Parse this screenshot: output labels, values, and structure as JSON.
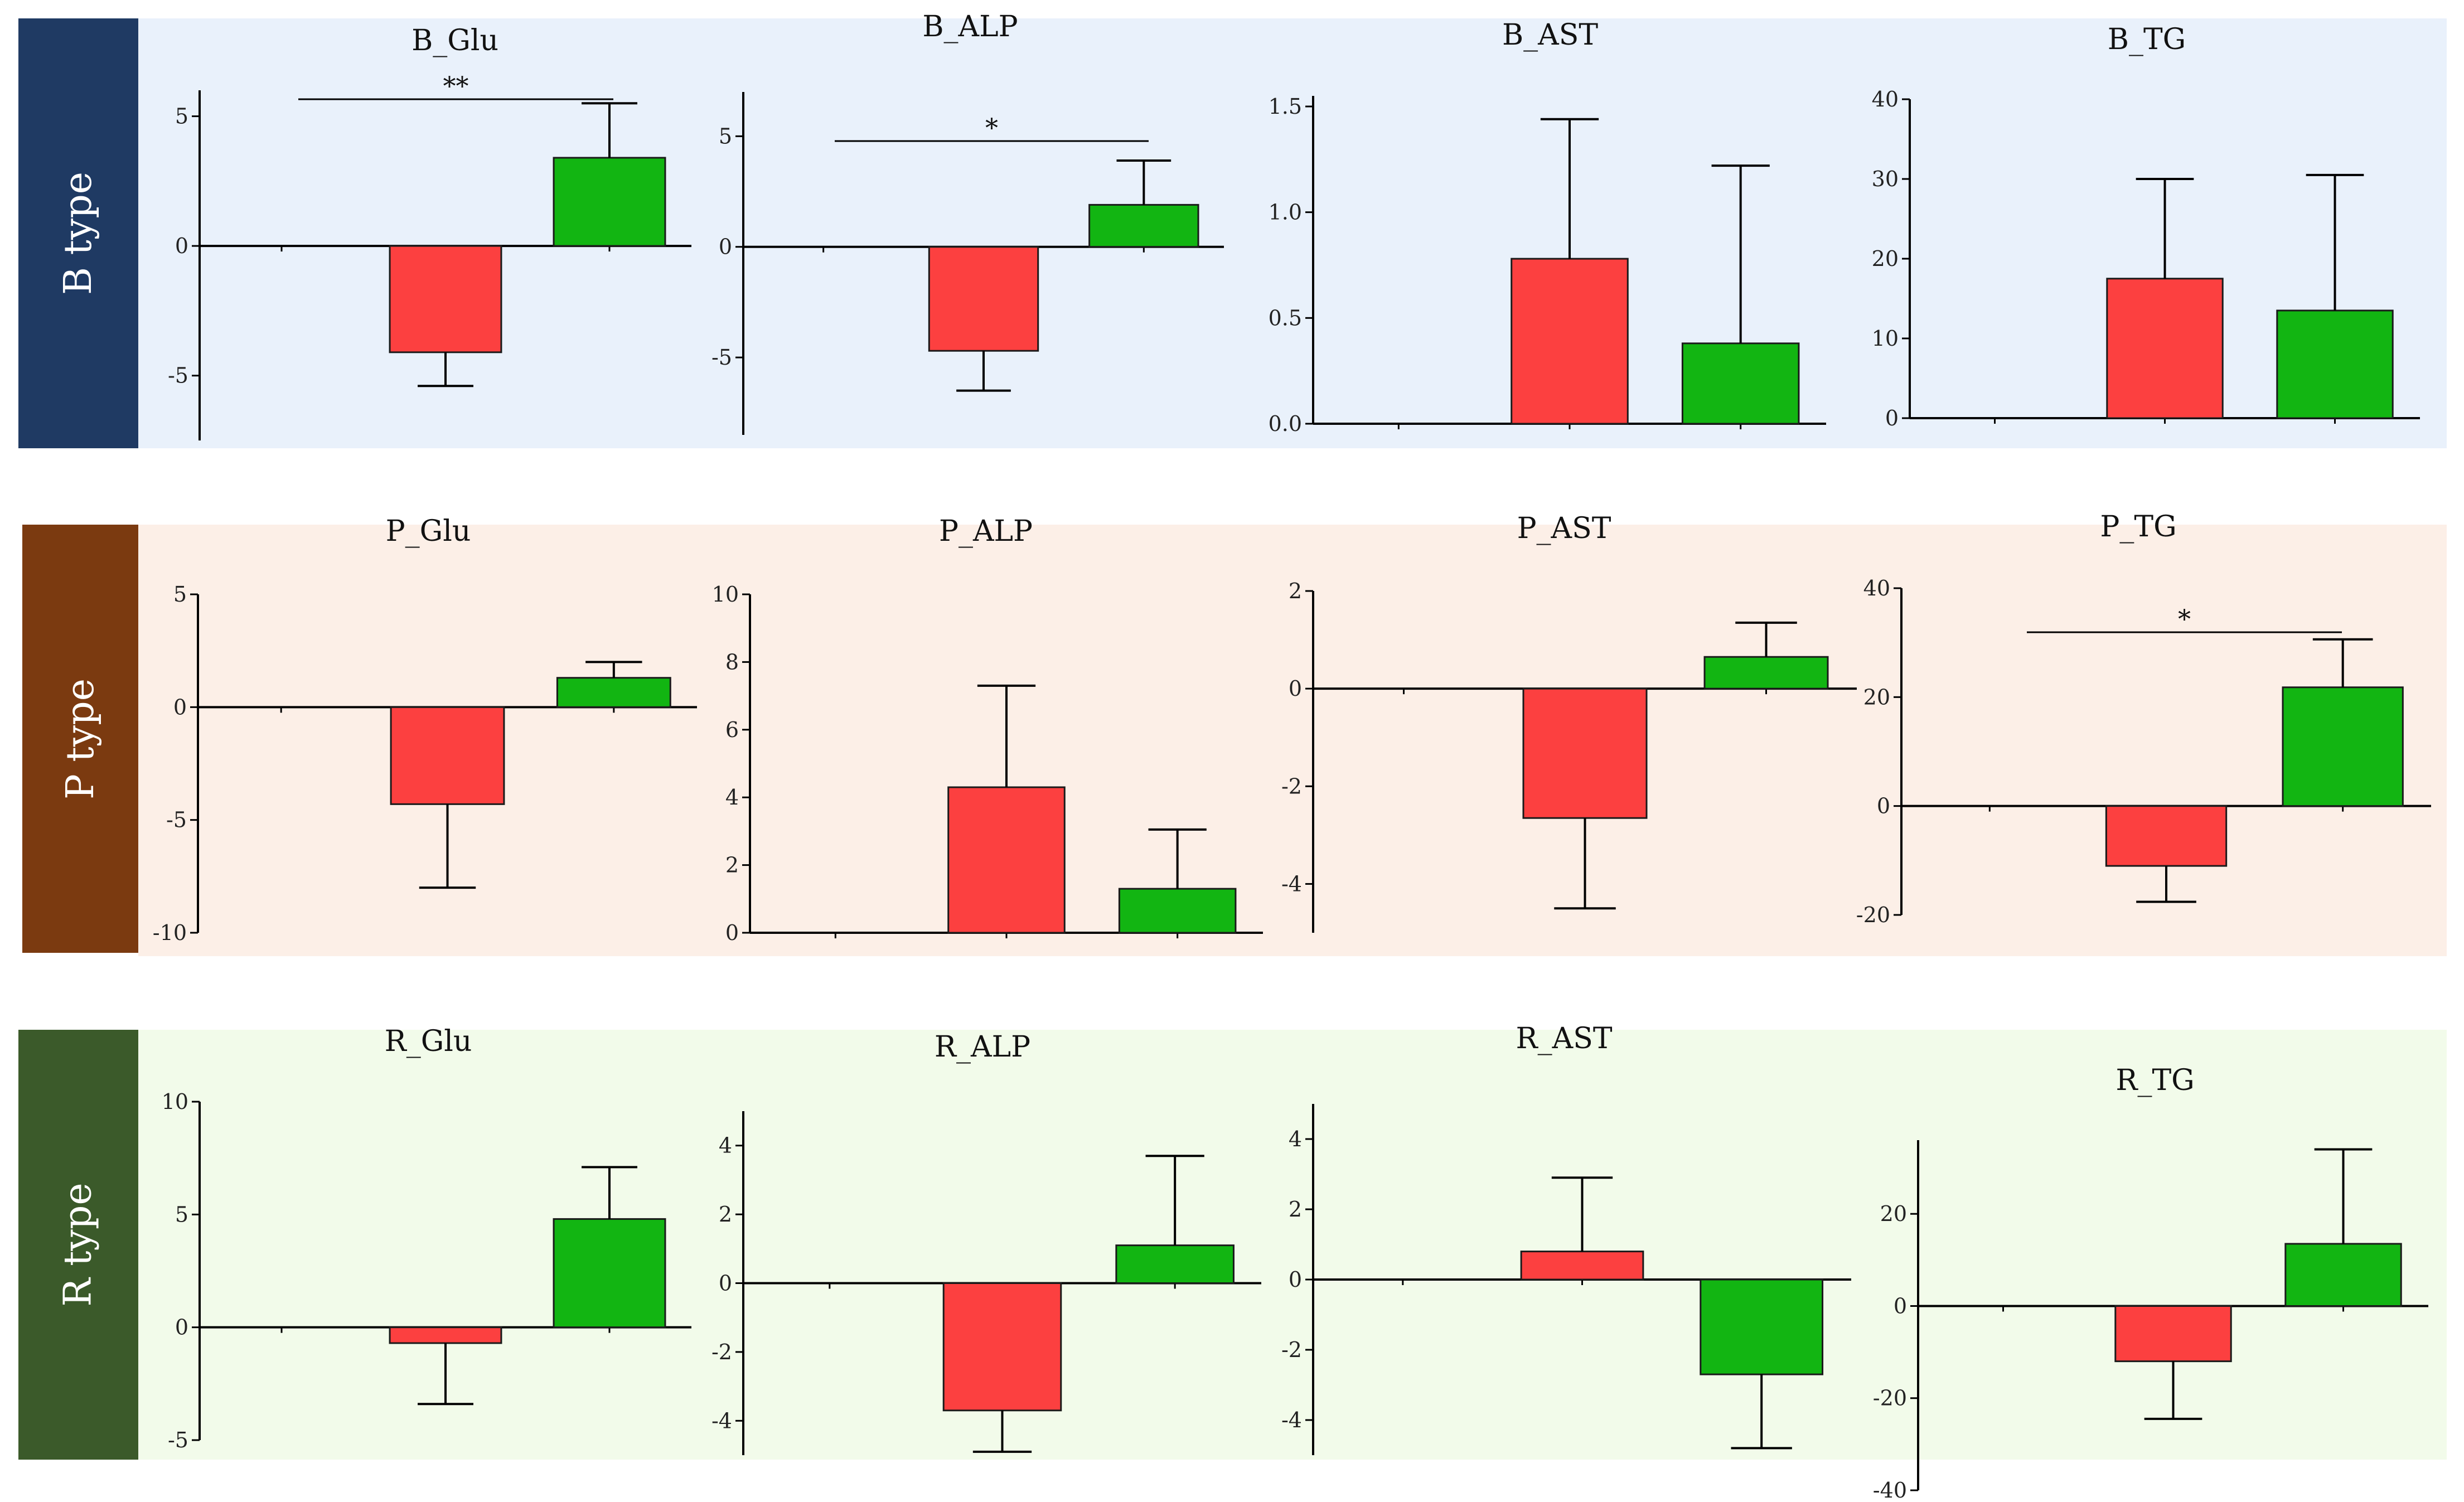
{
  "rows": [
    {
      "label": "B type",
      "band_color": "#E9F1FB",
      "label_color": "#1F3A63"
    },
    {
      "label": "P type",
      "band_color": "#FCEFE7",
      "label_color": "#7B3A10"
    },
    {
      "label": "R type",
      "band_color": "#F2FBEA",
      "label_color": "#3B5A2A"
    }
  ],
  "series_colors": {
    "bar1": "#FC4040",
    "bar2": "#12B512"
  },
  "chart_data": [
    {
      "id": "B_Glu",
      "type": "bar",
      "title": "B_Glu",
      "categories": [
        "",
        "",
        ""
      ],
      "values": [
        0,
        -4.1,
        3.4
      ],
      "errors": [
        0,
        1.3,
        2.1
      ],
      "ylim": [
        -7.5,
        6
      ],
      "yticks": [
        -5,
        0,
        5
      ],
      "tick_labels": [
        "-5",
        "0",
        "5"
      ],
      "significance": {
        "label": "**"
      }
    },
    {
      "id": "B_ALP",
      "type": "bar",
      "title": "B_ALP",
      "categories": [
        "",
        "",
        ""
      ],
      "values": [
        0,
        -4.7,
        1.9
      ],
      "errors": [
        0,
        1.8,
        2.0
      ],
      "ylim": [
        -8.5,
        7
      ],
      "yticks": [
        -5,
        0,
        5
      ],
      "tick_labels": [
        "-5",
        "0",
        "5"
      ],
      "significance": {
        "label": "*"
      }
    },
    {
      "id": "B_AST",
      "type": "bar",
      "title": "B_AST",
      "categories": [
        "",
        "",
        ""
      ],
      "values": [
        0,
        0.78,
        0.38
      ],
      "errors": [
        0,
        0.66,
        0.84
      ],
      "ylim": [
        0,
        1.55
      ],
      "yticks": [
        0,
        0.5,
        1.0,
        1.5
      ],
      "tick_labels": [
        "0.0",
        "0.5",
        "1.0",
        "1.5"
      ],
      "significance": null
    },
    {
      "id": "B_TG",
      "type": "bar",
      "title": "B_TG",
      "categories": [
        "",
        "",
        ""
      ],
      "values": [
        0,
        17.5,
        13.5
      ],
      "errors": [
        0,
        12.5,
        17.0
      ],
      "ylim": [
        0,
        40
      ],
      "yticks": [
        0,
        10,
        20,
        30,
        40
      ],
      "tick_labels": [
        "0",
        "10",
        "20",
        "30",
        "40"
      ],
      "significance": null
    },
    {
      "id": "P_Glu",
      "type": "bar",
      "title": "P_Glu",
      "categories": [
        "",
        "",
        ""
      ],
      "values": [
        0,
        -4.3,
        1.3
      ],
      "errors": [
        0,
        3.7,
        0.7
      ],
      "ylim": [
        -10,
        5
      ],
      "yticks": [
        -10,
        -5,
        0,
        5
      ],
      "tick_labels": [
        "-10",
        "-5",
        "0",
        "5"
      ],
      "significance": null
    },
    {
      "id": "P_ALP",
      "type": "bar",
      "title": "P_ALP",
      "categories": [
        "",
        "",
        ""
      ],
      "values": [
        0,
        4.3,
        1.3
      ],
      "errors": [
        0,
        3.0,
        1.75
      ],
      "ylim": [
        0,
        10
      ],
      "yticks": [
        0,
        2,
        4,
        6,
        8,
        10
      ],
      "tick_labels": [
        "0",
        "2",
        "4",
        "6",
        "8",
        "10"
      ],
      "significance": null
    },
    {
      "id": "P_AST",
      "type": "bar",
      "title": "P_AST",
      "categories": [
        "",
        "",
        ""
      ],
      "values": [
        0,
        -2.65,
        0.65
      ],
      "errors": [
        0,
        1.85,
        0.7
      ],
      "ylim": [
        -5,
        2
      ],
      "yticks": [
        -4,
        -2,
        0,
        2
      ],
      "tick_labels": [
        "-4",
        "-2",
        "0",
        "2"
      ],
      "significance": null
    },
    {
      "id": "P_TG",
      "type": "bar",
      "title": "P_TG",
      "categories": [
        "",
        "",
        ""
      ],
      "values": [
        0,
        -11.0,
        21.8
      ],
      "errors": [
        0,
        6.6,
        8.8
      ],
      "ylim": [
        -20,
        40
      ],
      "yticks": [
        -20,
        0,
        20,
        40
      ],
      "tick_labels": [
        "-20",
        "0",
        "20",
        "40"
      ],
      "significance": {
        "label": "*"
      }
    },
    {
      "id": "R_Glu",
      "type": "bar",
      "title": "R_Glu",
      "categories": [
        "",
        "",
        ""
      ],
      "values": [
        0,
        -0.7,
        4.8
      ],
      "errors": [
        0,
        2.7,
        2.3
      ],
      "ylim": [
        -5,
        10
      ],
      "yticks": [
        -5,
        0,
        5,
        10
      ],
      "tick_labels": [
        "-5",
        "0",
        "5",
        "10"
      ],
      "significance": null
    },
    {
      "id": "R_ALP",
      "type": "bar",
      "title": "R_ALP",
      "categories": [
        "",
        "",
        ""
      ],
      "values": [
        0,
        -3.7,
        1.1
      ],
      "errors": [
        0,
        1.2,
        2.6
      ],
      "ylim": [
        -5,
        5
      ],
      "yticks": [
        -4,
        -2,
        0,
        2,
        4
      ],
      "tick_labels": [
        "-4",
        "-2",
        "0",
        "2",
        "4"
      ],
      "significance": null
    },
    {
      "id": "R_AST",
      "type": "bar",
      "title": "R_AST",
      "categories": [
        "",
        "",
        ""
      ],
      "values": [
        0,
        0.8,
        -2.7
      ],
      "errors": [
        0,
        2.1,
        2.1
      ],
      "ylim": [
        -5,
        5
      ],
      "yticks": [
        -4,
        -2,
        0,
        2,
        4
      ],
      "tick_labels": [
        "-4",
        "-2",
        "0",
        "2",
        "4"
      ],
      "significance": null
    },
    {
      "id": "R_TG",
      "type": "bar",
      "title": "R_TG",
      "categories": [
        "",
        "",
        ""
      ],
      "values": [
        0,
        -12.0,
        13.5
      ],
      "errors": [
        0,
        12.5,
        20.5
      ],
      "ylim": [
        -40,
        36
      ],
      "yticks": [
        -40,
        -20,
        0,
        20
      ],
      "tick_labels": [
        "-40",
        "-20",
        "0",
        "20"
      ],
      "significance": null
    }
  ]
}
